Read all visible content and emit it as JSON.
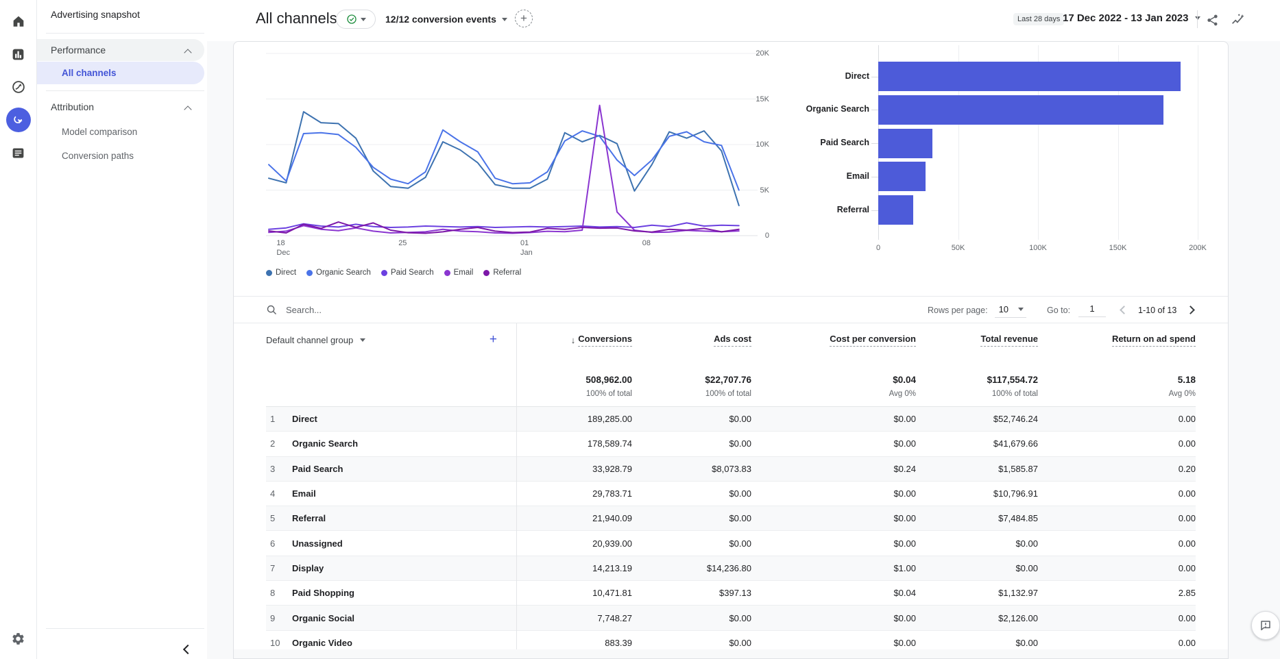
{
  "rail": {
    "items": [
      {
        "icon": "home-icon"
      },
      {
        "icon": "reports-icon"
      },
      {
        "icon": "explore-icon"
      },
      {
        "icon": "advertising-icon",
        "active": true
      },
      {
        "icon": "library-icon"
      }
    ],
    "bottom_icon": "settings-gear-icon"
  },
  "sidebar": {
    "title": "Advertising snapshot",
    "sections": [
      {
        "label": "Performance",
        "items": [
          {
            "label": "All channels",
            "selected": true
          }
        ]
      },
      {
        "label": "Attribution",
        "items": [
          {
            "label": "Model comparison"
          },
          {
            "label": "Conversion paths"
          }
        ]
      }
    ]
  },
  "header": {
    "title": "All channels",
    "conversion_events": "12/12 conversion events",
    "date_chip": "Last 28 days",
    "date_range": "17 Dec 2022 - 13 Jan 2023"
  },
  "chart_data": [
    {
      "type": "line",
      "title": "",
      "ylabel": "",
      "xlabel": "",
      "ylim": [
        0,
        20000
      ],
      "y_ticks": [
        "0",
        "5K",
        "10K",
        "15K",
        "20K"
      ],
      "x_tick_labels": [
        "18|Dec",
        "25",
        "01|Jan",
        "08"
      ],
      "x_tick_days": [
        1,
        8,
        15,
        22
      ],
      "grid": true,
      "legend_position": "bottom",
      "series": [
        {
          "name": "Direct",
          "color": "#3D72B0",
          "values": [
            6300,
            5800,
            13600,
            12400,
            12300,
            10700,
            7100,
            5400,
            5200,
            6400,
            10300,
            9400,
            8000,
            5600,
            5200,
            5200,
            6200,
            11300,
            10300,
            11000,
            10100,
            4900,
            7800,
            11400,
            10700,
            11500,
            9300,
            3300
          ]
        },
        {
          "name": "Organic Search",
          "color": "#4A73E8",
          "values": [
            7800,
            6000,
            11200,
            11300,
            11100,
            9700,
            7500,
            6200,
            5700,
            7000,
            11600,
            10300,
            9200,
            6300,
            5700,
            5800,
            7000,
            10400,
            11500,
            10900,
            8300,
            6600,
            8300,
            10900,
            11400,
            10300,
            9900,
            5000
          ]
        },
        {
          "name": "Paid Search",
          "color": "#6B40E0",
          "values": [
            700,
            850,
            1300,
            1050,
            950,
            1250,
            1000,
            900,
            950,
            1050,
            1000,
            950,
            1000,
            900,
            950,
            1000,
            950,
            1000,
            1050,
            950,
            1000,
            900,
            1150,
            1000,
            1400,
            1050,
            1150,
            1100
          ]
        },
        {
          "name": "Email",
          "color": "#8A35D0",
          "values": [
            350,
            500,
            1100,
            700,
            550,
            850,
            500,
            300,
            350,
            420,
            700,
            500,
            430,
            300,
            260,
            340,
            480,
            430,
            600,
            14300,
            2600,
            600,
            360,
            400,
            580,
            500,
            430,
            520
          ]
        },
        {
          "name": "Referral",
          "color": "#7C17A8",
          "values": [
            520,
            300,
            1250,
            800,
            1500,
            900,
            1400,
            600,
            320,
            260,
            420,
            700,
            900,
            500,
            340,
            400,
            800,
            700,
            900,
            820,
            840,
            520,
            400,
            700,
            600,
            800,
            420,
            700
          ]
        }
      ]
    },
    {
      "type": "bar",
      "orientation": "horizontal",
      "title": "",
      "categories": [
        "Direct",
        "Organic Search",
        "Paid Search",
        "Email",
        "Referral"
      ],
      "values": [
        189285,
        178589.74,
        33928.79,
        29783.71,
        21940.09
      ],
      "xlim": [
        0,
        200000
      ],
      "x_ticks": [
        "0",
        "50K",
        "100K",
        "150K",
        "200K"
      ],
      "color": "#4D5BD9",
      "grid": true
    }
  ],
  "controls": {
    "search_placeholder": "Search...",
    "rows_per_page_label": "Rows per page:",
    "rows_per_page": "10",
    "goto_label": "Go to:",
    "goto_value": "1",
    "range": "1-10 of 13"
  },
  "table": {
    "dimension_header": "Default channel group",
    "columns": [
      "Conversions",
      "Ads cost",
      "Cost per conversion",
      "Total revenue",
      "Return on ad spend"
    ],
    "sorted_column": "Conversions",
    "totals": {
      "values": [
        "508,962.00",
        "$22,707.76",
        "$0.04",
        "$117,554.72",
        "5.18"
      ],
      "subs": [
        "100% of total",
        "100% of total",
        "Avg 0%",
        "100% of total",
        "Avg 0%"
      ]
    },
    "rows": [
      {
        "n": "1",
        "channel": "Direct",
        "values": [
          "189,285.00",
          "$0.00",
          "$0.00",
          "$52,746.24",
          "0.00"
        ]
      },
      {
        "n": "2",
        "channel": "Organic Search",
        "values": [
          "178,589.74",
          "$0.00",
          "$0.00",
          "$41,679.66",
          "0.00"
        ]
      },
      {
        "n": "3",
        "channel": "Paid Search",
        "values": [
          "33,928.79",
          "$8,073.83",
          "$0.24",
          "$1,585.87",
          "0.20"
        ]
      },
      {
        "n": "4",
        "channel": "Email",
        "values": [
          "29,783.71",
          "$0.00",
          "$0.00",
          "$10,796.91",
          "0.00"
        ]
      },
      {
        "n": "5",
        "channel": "Referral",
        "values": [
          "21,940.09",
          "$0.00",
          "$0.00",
          "$7,484.85",
          "0.00"
        ]
      },
      {
        "n": "6",
        "channel": "Unassigned",
        "values": [
          "20,939.00",
          "$0.00",
          "$0.00",
          "$0.00",
          "0.00"
        ]
      },
      {
        "n": "7",
        "channel": "Display",
        "values": [
          "14,213.19",
          "$14,236.80",
          "$1.00",
          "$0.00",
          "0.00"
        ]
      },
      {
        "n": "8",
        "channel": "Paid Shopping",
        "values": [
          "10,471.81",
          "$397.13",
          "$0.04",
          "$1,132.97",
          "2.85"
        ]
      },
      {
        "n": "9",
        "channel": "Organic Social",
        "values": [
          "7,748.27",
          "$0.00",
          "$0.00",
          "$2,126.00",
          "0.00"
        ]
      },
      {
        "n": "10",
        "channel": "Organic Video",
        "values": [
          "883.39",
          "$0.00",
          "$0.00",
          "$0.00",
          "0.00"
        ]
      }
    ]
  },
  "colors": {
    "accent_blue": "#4254D6",
    "active_rail": "#4C5FE0",
    "bar_fill": "#4D5BD9",
    "selected_item_bg": "#E7EAFB",
    "chip_bg": "#F1F3F4",
    "green_check": "#1E8E3E"
  }
}
